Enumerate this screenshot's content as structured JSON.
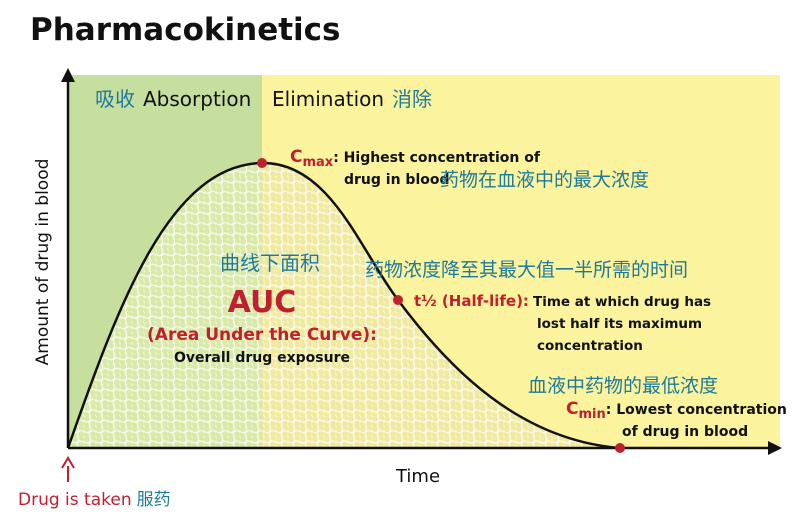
{
  "title": "Pharmacokinetics",
  "axes": {
    "y_label": "Amount of drug in blood",
    "x_label": "Time"
  },
  "phases": [
    {
      "zh": "吸收",
      "en": "Absorption"
    },
    {
      "en": "Elimination",
      "zh": "消除"
    }
  ],
  "cmax": {
    "symbol": "C",
    "sub": "max",
    "lines": [
      ": Highest concentration of",
      "drug in blood"
    ],
    "zh": "药物在血液中的最大浓度"
  },
  "auc": {
    "zh": "曲线下面积",
    "abbr": "AUC",
    "full": "(Area Under the Curve):",
    "desc": "Overall drug exposure"
  },
  "half_life": {
    "zh": "药物浓度降至其最大值一半所需的时间",
    "symbol": "t½ (Half-life):",
    "lines": [
      "Time at which drug has",
      "lost half its maximum",
      "concentration"
    ]
  },
  "cmin": {
    "zh": "血液中药物的最低浓度",
    "symbol": "C",
    "sub": "min",
    "lines": [
      ": Lowest concentration",
      "of drug in blood"
    ]
  },
  "dose": {
    "en": "Drug is taken",
    "zh": "服药"
  }
}
